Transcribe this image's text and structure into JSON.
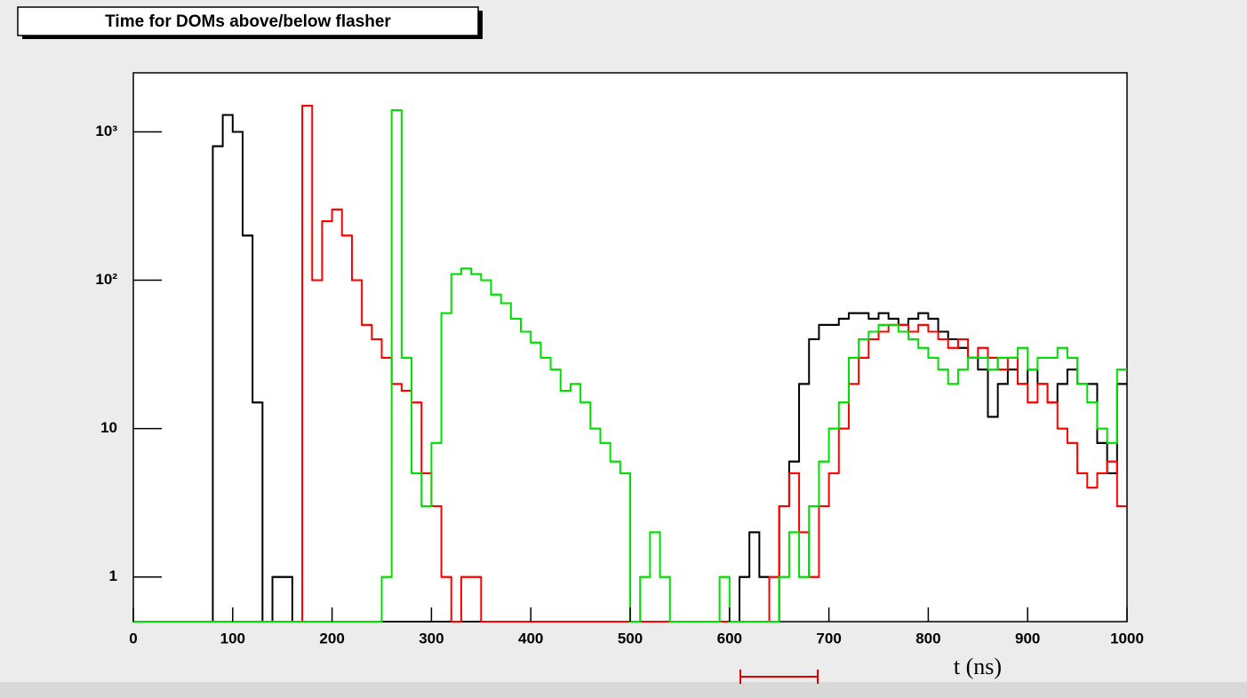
{
  "chart_data": {
    "type": "histogram",
    "title": "Time for DOMs above/below flasher",
    "xlabel": "t (ns)",
    "xlim": [
      0,
      1000
    ],
    "xticks": [
      0,
      100,
      200,
      300,
      400,
      500,
      600,
      700,
      800,
      900,
      1000
    ],
    "ylim": [
      0.5,
      2500
    ],
    "yscale": "log",
    "yticks": [
      1,
      10,
      {
        "value": 100,
        "label": "10²"
      },
      {
        "value": 1000,
        "label": "10³"
      }
    ],
    "bins": [
      0,
      10,
      20,
      30,
      40,
      50,
      60,
      70,
      80,
      90,
      100,
      110,
      120,
      130,
      140,
      150,
      160,
      170,
      180,
      190,
      200,
      210,
      220,
      230,
      240,
      250,
      260,
      270,
      280,
      290,
      300,
      310,
      320,
      330,
      340,
      350,
      360,
      370,
      380,
      390,
      400,
      410,
      420,
      430,
      440,
      450,
      460,
      470,
      480,
      490,
      500,
      510,
      520,
      530,
      540,
      550,
      560,
      570,
      580,
      590,
      600,
      610,
      620,
      630,
      640,
      650,
      660,
      670,
      680,
      690,
      700,
      710,
      720,
      730,
      740,
      750,
      760,
      770,
      780,
      790,
      800,
      810,
      820,
      830,
      840,
      850,
      860,
      870,
      880,
      890,
      900,
      910,
      920,
      930,
      940,
      950,
      960,
      970,
      980,
      990,
      1000
    ],
    "series": [
      {
        "color": "#000000",
        "values": [
          0,
          0,
          0,
          0,
          0,
          0,
          0,
          0,
          800,
          1300,
          1000,
          200,
          15,
          0,
          1,
          1,
          0,
          0,
          0,
          0,
          0,
          0,
          0,
          0,
          0,
          0,
          0,
          0,
          0,
          0,
          0,
          0,
          0,
          0,
          0,
          0,
          0,
          0,
          0,
          0,
          0,
          0,
          0,
          0,
          0,
          0,
          0,
          0,
          0,
          0,
          0,
          0,
          0,
          0,
          0,
          0,
          0,
          0,
          0,
          0,
          0,
          1,
          2,
          1,
          0,
          3,
          6,
          20,
          40,
          50,
          50,
          55,
          60,
          60,
          55,
          60,
          55,
          50,
          55,
          60,
          55,
          45,
          40,
          35,
          30,
          25,
          12,
          20,
          25,
          20,
          25,
          20,
          15,
          20,
          25,
          20,
          20,
          8,
          5,
          20
        ]
      },
      {
        "color": "#ff0000",
        "values": [
          0,
          0,
          0,
          0,
          0,
          0,
          0,
          0,
          0,
          0,
          0,
          0,
          0,
          0,
          0,
          0,
          0,
          1500,
          100,
          250,
          300,
          200,
          100,
          50,
          40,
          30,
          20,
          18,
          15,
          5,
          3,
          1,
          0,
          1,
          1,
          0,
          0,
          0,
          0,
          0,
          0,
          0,
          0,
          0,
          0,
          0,
          0,
          0,
          0,
          0,
          0,
          0,
          0,
          0,
          0,
          0,
          0,
          0,
          0,
          0,
          0,
          0,
          0,
          0,
          1,
          3,
          5,
          2,
          1,
          3,
          5,
          10,
          20,
          30,
          40,
          45,
          50,
          50,
          45,
          50,
          45,
          40,
          35,
          40,
          30,
          35,
          30,
          25,
          30,
          20,
          15,
          20,
          15,
          10,
          8,
          5,
          4,
          5,
          6,
          3
        ]
      },
      {
        "color": "#00e000",
        "values": [
          0,
          0,
          0,
          0,
          0,
          0,
          0,
          0,
          0,
          0,
          0,
          0,
          0,
          0,
          0,
          0,
          0,
          0,
          0,
          0,
          0,
          0,
          0,
          0,
          0,
          1,
          1400,
          30,
          5,
          3,
          8,
          60,
          110,
          120,
          110,
          100,
          80,
          70,
          55,
          45,
          38,
          30,
          25,
          18,
          20,
          15,
          10,
          8,
          6,
          5,
          0,
          1,
          2,
          1,
          0,
          0,
          0,
          0,
          0,
          1,
          0,
          0,
          0,
          0,
          0,
          1,
          2,
          1,
          3,
          6,
          10,
          15,
          30,
          40,
          45,
          50,
          50,
          45,
          40,
          35,
          30,
          25,
          20,
          25,
          30,
          30,
          25,
          30,
          30,
          35,
          25,
          30,
          30,
          35,
          30,
          20,
          15,
          10,
          8,
          25
        ]
      }
    ]
  }
}
